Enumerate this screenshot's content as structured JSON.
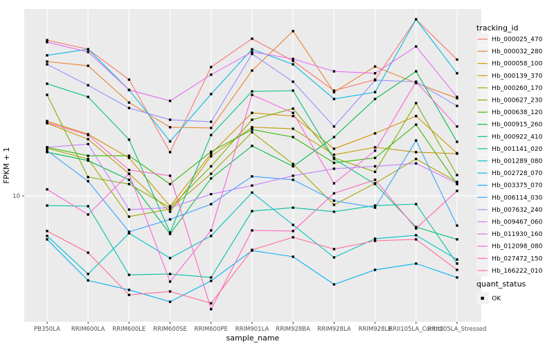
{
  "figure_bg": "#ffffff",
  "panel_bg": "#EBEBEB",
  "gridline_color": "#FFFFFF",
  "tick_text_color": "#4D4D4D",
  "title_text_color": "#000000",
  "legend_key_bg": "#F2F2F2",
  "point_color": "#000000",
  "chart_data": {
    "type": "line",
    "title": "",
    "xlabel": "sample_name",
    "ylabel": "FPKM + 1",
    "y_scale": "log10",
    "y_ticks": [
      10
    ],
    "y_tick_labels": [
      "10"
    ],
    "grid": "ggplot",
    "legend_position": "right",
    "categories": [
      "PB350LA",
      "RRIM600LA",
      "RRIM600LE",
      "RRIM600SE",
      "RRIM600PE",
      "RRIM901LA",
      "RRIM928BA",
      "RRIM928LA",
      "RRIM928LE",
      "RRII105LA_Control",
      "RRII105LA_Stressed"
    ],
    "legend1_title": "tracking_id",
    "legend2_title": "quant_status",
    "legend2_items": [
      {
        "label": "OK",
        "marker": "black-square"
      }
    ],
    "series": [
      {
        "name": "Hb_000025_470",
        "color": "#F8766D",
        "values": [
          63.6,
          57.1,
          39.8,
          16.8,
          46.2,
          64.7,
          49.7,
          34.9,
          39.8,
          81.4,
          50.5
        ]
      },
      {
        "name": "Hb_000032_280",
        "color": "#EA8331",
        "values": [
          49.3,
          46.9,
          30.3,
          22.6,
          22.4,
          44.3,
          70.8,
          34.3,
          46.5,
          38.2,
          31.9
        ]
      },
      {
        "name": "Hb_000058_100",
        "color": "#D89000",
        "values": [
          24.3,
          20.8,
          15.7,
          8.84,
          16.5,
          26.8,
          25.8,
          17.5,
          21.0,
          25.8,
          16.6
        ]
      },
      {
        "name": "Hb_000139_370",
        "color": "#C09B00",
        "values": [
          23.7,
          19.6,
          13.0,
          8.28,
          16.0,
          22.6,
          22.2,
          16.3,
          17.8,
          16.8,
          16.5
        ]
      },
      {
        "name": "Hb_000260_170",
        "color": "#A3A500",
        "values": [
          17.6,
          15.5,
          7.81,
          8.55,
          13.0,
          21.3,
          14.6,
          8.99,
          11.6,
          15.5,
          11.8
        ]
      },
      {
        "name": "Hb_000627_230",
        "color": "#7CAE00",
        "values": [
          33.2,
          12.5,
          11.5,
          8.69,
          14.2,
          24.7,
          28.2,
          15.7,
          13.3,
          30.1,
          12.8
        ]
      },
      {
        "name": "Hb_000638_120",
        "color": "#39B600",
        "values": [
          17.8,
          16.1,
          16.1,
          11.5,
          16.9,
          22.0,
          20.1,
          14.8,
          15.7,
          23.3,
          11.5
        ]
      },
      {
        "name": "Hb_000915_260",
        "color": "#00BB4E",
        "values": [
          16.8,
          15.2,
          12.1,
          6.36,
          12.3,
          18.1,
          14.2,
          20.1,
          31.6,
          43.9,
          19.0
        ]
      },
      {
        "name": "Hb_000922_410",
        "color": "#00BF7D",
        "values": [
          37.9,
          32.4,
          19.5,
          6.47,
          20.6,
          34.6,
          34.9,
          15.5,
          11.5,
          6.9,
          5.96
        ]
      },
      {
        "name": "Hb_001141_020",
        "color": "#00C1A3",
        "values": [
          8.91,
          8.84,
          3.91,
          3.95,
          3.79,
          8.34,
          8.69,
          8.28,
          8.91,
          9.06,
          4.47
        ]
      },
      {
        "name": "Hb_001289_080",
        "color": "#00BFC4",
        "values": [
          6.21,
          3.95,
          6.41,
          4.77,
          6.21,
          10.4,
          7.08,
          4.81,
          6.01,
          6.26,
          4.69
        ]
      },
      {
        "name": "Hb_002728_070",
        "color": "#00BAE0",
        "values": [
          53.1,
          57.1,
          35.2,
          19.1,
          33.5,
          57.1,
          47.7,
          31.6,
          34.3,
          81.4,
          42.9
        ]
      },
      {
        "name": "Hb_003375_070",
        "color": "#00B0F6",
        "values": [
          5.96,
          3.66,
          3.27,
          2.84,
          3.64,
          5.22,
          4.85,
          3.49,
          4.15,
          4.47,
          3.79
        ]
      },
      {
        "name": "Hb_006114_030",
        "color": "#35A2FF",
        "values": [
          17.1,
          11.9,
          6.52,
          7.56,
          9.06,
          12.6,
          12.1,
          9.44,
          8.69,
          19.3,
          7.02
        ]
      },
      {
        "name": "Hb_007632_240",
        "color": "#9590FF",
        "values": [
          47.7,
          37.2,
          28.4,
          24.7,
          24.1,
          54.0,
          38.8,
          22.8,
          39.5,
          38.8,
          29.1
        ]
      },
      {
        "name": "Hb_009467_060",
        "color": "#C77CFF",
        "values": [
          17.8,
          18.5,
          8.49,
          8.69,
          10.2,
          11.3,
          12.7,
          13.8,
          14.2,
          14.7,
          11.6
        ]
      },
      {
        "name": "Hb_011930_160",
        "color": "#E76BF3",
        "values": [
          62.1,
          55.3,
          35.2,
          30.9,
          42.2,
          55.3,
          50.9,
          43.9,
          42.9,
          59.0,
          32.4
        ]
      },
      {
        "name": "Hb_012098_080",
        "color": "#FA62DB",
        "values": [
          10.8,
          8.01,
          13.0,
          3.61,
          6.63,
          33.2,
          26.8,
          11.6,
          17.1,
          38.8,
          22.8
        ]
      },
      {
        "name": "Hb_027472_150",
        "color": "#FF62BC",
        "values": [
          23.9,
          20.6,
          13.6,
          12.7,
          2.6,
          6.63,
          6.58,
          10.3,
          12.1,
          6.79,
          10.6
        ]
      },
      {
        "name": "Hb_166222_010",
        "color": "#FF6A98",
        "values": [
          6.58,
          5.09,
          3.08,
          3.21,
          2.79,
          5.26,
          6.11,
          5.31,
          5.86,
          5.96,
          4.15
        ]
      }
    ]
  }
}
